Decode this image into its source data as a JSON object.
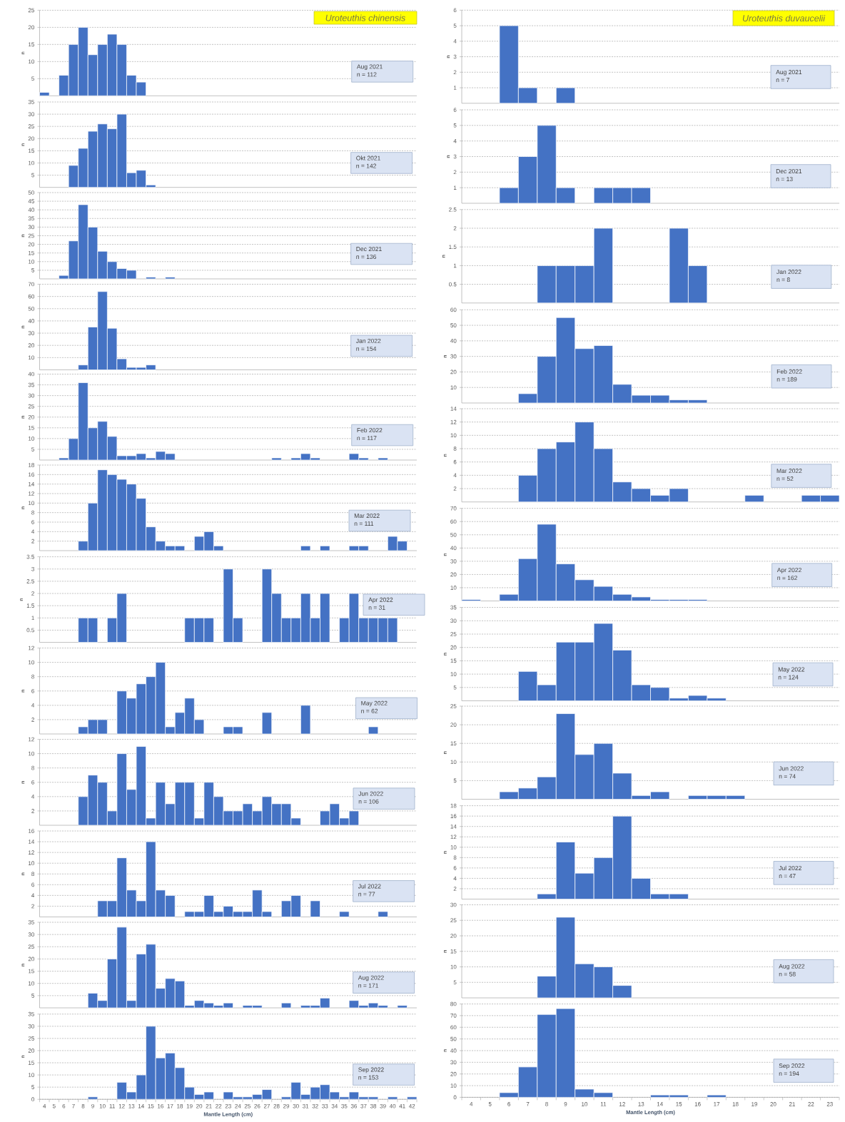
{
  "chart_data": [
    {
      "type": "bar",
      "title": "Uroteuthis chinensis",
      "ylabel": "n",
      "categories": [
        "4",
        "5",
        "6",
        "7",
        "8",
        "9",
        "10",
        "11",
        "12",
        "13",
        "14",
        "15",
        "16",
        "17",
        "18",
        "19",
        "20",
        "21",
        "22",
        "23",
        "24",
        "25",
        "26",
        "27",
        "28",
        "29",
        "30",
        "31",
        "32",
        "33",
        "34",
        "35",
        "36",
        "37",
        "38",
        "39",
        "40",
        "41",
        "42"
      ],
      "values": [
        1,
        null,
        6,
        15,
        20,
        12,
        15,
        18,
        15,
        6,
        4,
        null,
        null,
        null,
        null,
        null,
        null,
        null,
        null,
        null,
        null,
        null,
        null,
        null,
        null,
        null,
        null,
        null,
        null,
        null,
        null,
        null,
        null,
        null,
        null,
        null,
        null,
        null,
        null
      ],
      "color": "#4472c4",
      "ylim": [
        0,
        25
      ],
      "yticks": [
        5,
        10,
        15,
        20,
        25
      ],
      "grid": "y",
      "tick_labels": "y",
      "annotations": [
        "Aug 2021",
        "n = 112"
      ]
    },
    {
      "type": "bar",
      "ylabel": "n",
      "categories": [
        "4",
        "5",
        "6",
        "7",
        "8",
        "9",
        "10",
        "11",
        "12",
        "13",
        "14",
        "15",
        "16",
        "17",
        "18",
        "19",
        "20",
        "21",
        "22",
        "23",
        "24",
        "25",
        "26",
        "27",
        "28",
        "29",
        "30",
        "31",
        "32",
        "33",
        "34",
        "35",
        "36",
        "37",
        "38",
        "39",
        "40",
        "41",
        "42"
      ],
      "values": [
        null,
        null,
        null,
        9,
        16,
        23,
        26,
        24,
        30,
        6,
        7,
        1,
        null,
        null,
        null,
        null,
        null,
        null,
        null,
        null,
        null,
        null,
        null,
        null,
        null,
        null,
        null,
        null,
        null,
        null,
        null,
        null,
        null,
        null,
        null,
        null,
        null,
        null,
        null
      ],
      "color": "#4472c4",
      "ylim": [
        0,
        35
      ],
      "yticks": [
        5,
        10,
        15,
        20,
        25,
        30,
        35
      ],
      "grid": "y",
      "tick_labels": "y",
      "annotations": [
        "Okt 2021",
        "n = 142"
      ]
    },
    {
      "type": "bar",
      "ylabel": "n",
      "categories": [
        "4",
        "5",
        "6",
        "7",
        "8",
        "9",
        "10",
        "11",
        "12",
        "13",
        "14",
        "15",
        "16",
        "17",
        "18",
        "19",
        "20",
        "21",
        "22",
        "23",
        "24",
        "25",
        "26",
        "27",
        "28",
        "29",
        "30",
        "31",
        "32",
        "33",
        "34",
        "35",
        "36",
        "37",
        "38",
        "39",
        "40",
        "41",
        "42"
      ],
      "values": [
        null,
        null,
        2,
        22,
        43,
        30,
        16,
        10,
        6,
        5,
        null,
        1,
        null,
        1,
        null,
        null,
        null,
        null,
        null,
        null,
        null,
        null,
        null,
        null,
        null,
        null,
        null,
        null,
        null,
        null,
        null,
        null,
        null,
        null,
        null,
        null,
        null,
        null,
        null
      ],
      "color": "#4472c4",
      "ylim": [
        0,
        50
      ],
      "yticks": [
        5,
        10,
        15,
        20,
        25,
        30,
        35,
        40,
        45,
        50
      ],
      "grid": "y",
      "tick_labels": "y",
      "annotations": [
        "Dec 2021",
        "n = 136"
      ]
    },
    {
      "type": "bar",
      "ylabel": "n",
      "categories": [
        "4",
        "5",
        "6",
        "7",
        "8",
        "9",
        "10",
        "11",
        "12",
        "13",
        "14",
        "15",
        "16",
        "17",
        "18",
        "19",
        "20",
        "21",
        "22",
        "23",
        "24",
        "25",
        "26",
        "27",
        "28",
        "29",
        "30",
        "31",
        "32",
        "33",
        "34",
        "35",
        "36",
        "37",
        "38",
        "39",
        "40",
        "41",
        "42"
      ],
      "values": [
        null,
        null,
        null,
        null,
        4,
        35,
        64,
        34,
        9,
        2,
        2,
        4,
        null,
        null,
        null,
        null,
        null,
        null,
        null,
        null,
        null,
        null,
        null,
        null,
        null,
        null,
        null,
        null,
        null,
        null,
        null,
        null,
        null,
        null,
        null,
        null,
        null,
        null,
        null
      ],
      "color": "#4472c4",
      "ylim": [
        0,
        70
      ],
      "yticks": [
        10,
        20,
        30,
        40,
        50,
        60,
        70
      ],
      "grid": "y",
      "tick_labels": "y",
      "annotations": [
        "Jan 2022",
        "n = 154"
      ]
    },
    {
      "type": "bar",
      "ylabel": "n",
      "categories": [
        "4",
        "5",
        "6",
        "7",
        "8",
        "9",
        "10",
        "11",
        "12",
        "13",
        "14",
        "15",
        "16",
        "17",
        "18",
        "19",
        "20",
        "21",
        "22",
        "23",
        "24",
        "25",
        "26",
        "27",
        "28",
        "29",
        "30",
        "31",
        "32",
        "33",
        "34",
        "35",
        "36",
        "37",
        "38",
        "39",
        "40",
        "41",
        "42"
      ],
      "values": [
        null,
        null,
        1,
        10,
        36,
        15,
        18,
        11,
        2,
        2,
        3,
        1,
        4,
        3,
        null,
        null,
        null,
        null,
        null,
        null,
        null,
        null,
        null,
        null,
        1,
        null,
        1,
        3,
        1,
        null,
        null,
        null,
        3,
        1,
        null,
        1,
        null,
        null,
        null
      ],
      "color": "#4472c4",
      "ylim": [
        0,
        40
      ],
      "yticks": [
        5,
        10,
        15,
        20,
        25,
        30,
        35,
        40
      ],
      "grid": "y",
      "tick_labels": "y",
      "annotations": [
        "Feb 2022",
        "n = 117"
      ]
    },
    {
      "type": "bar",
      "ylabel": "n",
      "categories": [
        "4",
        "5",
        "6",
        "7",
        "8",
        "9",
        "10",
        "11",
        "12",
        "13",
        "14",
        "15",
        "16",
        "17",
        "18",
        "19",
        "20",
        "21",
        "22",
        "23",
        "24",
        "25",
        "26",
        "27",
        "28",
        "29",
        "30",
        "31",
        "32",
        "33",
        "34",
        "35",
        "36",
        "37",
        "38",
        "39",
        "40",
        "41",
        "42"
      ],
      "values": [
        null,
        null,
        null,
        null,
        2,
        10,
        17,
        16,
        15,
        14,
        11,
        5,
        2,
        1,
        1,
        null,
        3,
        4,
        1,
        null,
        null,
        null,
        null,
        null,
        null,
        null,
        null,
        1,
        null,
        1,
        null,
        null,
        1,
        1,
        null,
        null,
        3,
        2,
        null
      ],
      "color": "#4472c4",
      "ylim": [
        0,
        18
      ],
      "yticks": [
        2,
        4,
        6,
        8,
        10,
        12,
        14,
        16,
        18
      ],
      "grid": "y",
      "tick_labels": "y",
      "annotations": [
        "Mar 2022",
        "n = 111"
      ]
    },
    {
      "type": "bar",
      "ylabel": "n",
      "categories": [
        "4",
        "5",
        "6",
        "7",
        "8",
        "9",
        "10",
        "11",
        "12",
        "13",
        "14",
        "15",
        "16",
        "17",
        "18",
        "19",
        "20",
        "21",
        "22",
        "23",
        "24",
        "25",
        "26",
        "27",
        "28",
        "29",
        "30",
        "31",
        "32",
        "33",
        "34",
        "35",
        "36",
        "37",
        "38",
        "39",
        "40",
        "41",
        "42"
      ],
      "values": [
        null,
        null,
        null,
        null,
        1,
        1,
        null,
        1,
        2,
        null,
        null,
        null,
        null,
        null,
        null,
        1,
        1,
        1,
        null,
        3,
        1,
        null,
        null,
        3,
        2,
        1,
        1,
        2,
        1,
        2,
        null,
        1,
        2,
        1,
        1,
        1,
        1,
        null,
        null
      ],
      "color": "#4472c4",
      "ylim": [
        0,
        3.5
      ],
      "yticks": [
        0.5,
        1,
        1.5,
        2,
        2.5,
        3,
        3.5
      ],
      "grid": "y",
      "tick_labels": "y",
      "annotations": [
        "Apr 2022",
        "n = 31"
      ]
    },
    {
      "type": "bar",
      "ylabel": "n",
      "categories": [
        "4",
        "5",
        "6",
        "7",
        "8",
        "9",
        "10",
        "11",
        "12",
        "13",
        "14",
        "15",
        "16",
        "17",
        "18",
        "19",
        "20",
        "21",
        "22",
        "23",
        "24",
        "25",
        "26",
        "27",
        "28",
        "29",
        "30",
        "31",
        "32",
        "33",
        "34",
        "35",
        "36",
        "37",
        "38",
        "39",
        "40",
        "41",
        "42"
      ],
      "values": [
        null,
        null,
        null,
        null,
        1,
        2,
        2,
        null,
        6,
        5,
        7,
        8,
        10,
        1,
        3,
        5,
        2,
        null,
        null,
        1,
        1,
        null,
        null,
        3,
        null,
        null,
        null,
        4,
        null,
        null,
        null,
        null,
        null,
        null,
        1,
        null,
        null,
        null,
        null
      ],
      "color": "#4472c4",
      "ylim": [
        0,
        12
      ],
      "yticks": [
        2,
        4,
        6,
        8,
        10,
        12
      ],
      "grid": "y",
      "tick_labels": "y",
      "annotations": [
        "May 2022",
        "n = 62"
      ]
    },
    {
      "type": "bar",
      "ylabel": "n",
      "categories": [
        "4",
        "5",
        "6",
        "7",
        "8",
        "9",
        "10",
        "11",
        "12",
        "13",
        "14",
        "15",
        "16",
        "17",
        "18",
        "19",
        "20",
        "21",
        "22",
        "23",
        "24",
        "25",
        "26",
        "27",
        "28",
        "29",
        "30",
        "31",
        "32",
        "33",
        "34",
        "35",
        "36",
        "37",
        "38",
        "39",
        "40",
        "41",
        "42"
      ],
      "values": [
        null,
        null,
        null,
        null,
        4,
        7,
        6,
        2,
        10,
        5,
        11,
        1,
        6,
        3,
        6,
        6,
        1,
        6,
        4,
        2,
        2,
        3,
        2,
        4,
        3,
        3,
        1,
        null,
        null,
        2,
        3,
        1,
        2,
        null,
        null,
        null,
        null,
        null,
        null
      ],
      "color": "#4472c4",
      "ylim": [
        0,
        12
      ],
      "yticks": [
        2,
        4,
        6,
        8,
        10,
        12
      ],
      "grid": "y",
      "tick_labels": "y",
      "annotations": [
        "Jun 2022",
        "n = 106"
      ]
    },
    {
      "type": "bar",
      "ylabel": "n",
      "categories": [
        "4",
        "5",
        "6",
        "7",
        "8",
        "9",
        "10",
        "11",
        "12",
        "13",
        "14",
        "15",
        "16",
        "17",
        "18",
        "19",
        "20",
        "21",
        "22",
        "23",
        "24",
        "25",
        "26",
        "27",
        "28",
        "29",
        "30",
        "31",
        "32",
        "33",
        "34",
        "35",
        "36",
        "37",
        "38",
        "39",
        "40",
        "41",
        "42"
      ],
      "values": [
        null,
        null,
        null,
        null,
        null,
        null,
        3,
        3,
        11,
        5,
        3,
        14,
        5,
        4,
        null,
        1,
        1,
        4,
        1,
        2,
        1,
        1,
        5,
        1,
        null,
        3,
        4,
        null,
        3,
        null,
        null,
        1,
        null,
        null,
        null,
        1,
        null,
        null,
        null
      ],
      "color": "#4472c4",
      "ylim": [
        0,
        16
      ],
      "yticks": [
        2,
        4,
        6,
        8,
        10,
        12,
        14,
        16
      ],
      "grid": "y",
      "tick_labels": "y",
      "annotations": [
        "Jul 2022",
        "n = 77"
      ]
    },
    {
      "type": "bar",
      "ylabel": "n",
      "categories": [
        "4",
        "5",
        "6",
        "7",
        "8",
        "9",
        "10",
        "11",
        "12",
        "13",
        "14",
        "15",
        "16",
        "17",
        "18",
        "19",
        "20",
        "21",
        "22",
        "23",
        "24",
        "25",
        "26",
        "27",
        "28",
        "29",
        "30",
        "31",
        "32",
        "33",
        "34",
        "35",
        "36",
        "37",
        "38",
        "39",
        "40",
        "41",
        "42"
      ],
      "values": [
        null,
        null,
        null,
        null,
        null,
        6,
        3,
        20,
        33,
        3,
        22,
        26,
        8,
        12,
        11,
        1,
        3,
        2,
        1,
        2,
        null,
        1,
        1,
        null,
        null,
        2,
        null,
        1,
        1,
        4,
        null,
        null,
        3,
        1,
        2,
        1,
        null,
        1,
        null
      ],
      "color": "#4472c4",
      "ylim": [
        0,
        35
      ],
      "yticks": [
        5,
        10,
        15,
        20,
        25,
        30,
        35
      ],
      "grid": "y",
      "tick_labels": "y",
      "annotations": [
        "Aug 2022",
        "n = 171"
      ]
    },
    {
      "type": "bar",
      "xlabel": "Mantle Length (cm)",
      "ylabel": "n",
      "categories": [
        "4",
        "5",
        "6",
        "7",
        "8",
        "9",
        "10",
        "11",
        "12",
        "13",
        "14",
        "15",
        "16",
        "17",
        "18",
        "19",
        "20",
        "21",
        "22",
        "23",
        "24",
        "25",
        "26",
        "27",
        "28",
        "29",
        "30",
        "31",
        "32",
        "33",
        "34",
        "35",
        "36",
        "37",
        "38",
        "39",
        "40",
        "41",
        "42"
      ],
      "values": [
        null,
        null,
        null,
        null,
        null,
        1,
        null,
        null,
        7,
        3,
        10,
        30,
        17,
        19,
        13,
        5,
        2,
        3,
        null,
        3,
        1,
        1,
        2,
        4,
        null,
        1,
        7,
        2,
        5,
        6,
        3,
        1,
        3,
        1,
        1,
        null,
        1,
        null,
        1
      ],
      "color": "#4472c4",
      "ylim": [
        0,
        35
      ],
      "yticks": [
        0,
        5,
        10,
        15,
        20,
        25,
        30,
        35
      ],
      "grid": "y",
      "annotations": [
        "Sep 2022",
        "n = 153"
      ]
    },
    {
      "type": "bar",
      "title": "Uroteuthis duvaucelii",
      "ylabel": "n",
      "categories": [
        "4",
        "5",
        "6",
        "7",
        "8",
        "9",
        "10",
        "11",
        "12",
        "13",
        "14",
        "15",
        "16",
        "17",
        "18",
        "19",
        "20",
        "21",
        "22",
        "23"
      ],
      "values": [
        null,
        null,
        5,
        1,
        null,
        1,
        null,
        null,
        null,
        null,
        null,
        null,
        null,
        null,
        null,
        null,
        null,
        null,
        null,
        null
      ],
      "color": "#4472c4",
      "ylim": [
        0,
        6
      ],
      "yticks": [
        1,
        2,
        3,
        4,
        5,
        6
      ],
      "grid": "y",
      "tick_labels": "y",
      "annotations": [
        "Aug 2021",
        "n = 7"
      ]
    },
    {
      "type": "bar",
      "ylabel": "n",
      "categories": [
        "4",
        "5",
        "6",
        "7",
        "8",
        "9",
        "10",
        "11",
        "12",
        "13",
        "14",
        "15",
        "16",
        "17",
        "18",
        "19",
        "20",
        "21",
        "22",
        "23"
      ],
      "values": [
        null,
        null,
        1,
        3,
        5,
        1,
        null,
        1,
        1,
        1,
        null,
        null,
        null,
        null,
        null,
        null,
        null,
        null,
        null,
        null
      ],
      "color": "#4472c4",
      "ylim": [
        0,
        6
      ],
      "yticks": [
        1,
        2,
        3,
        4,
        5,
        6
      ],
      "grid": "y",
      "tick_labels": "y",
      "annotations": [
        "Dec 2021",
        "n = 13"
      ]
    },
    {
      "type": "bar",
      "ylabel": "n",
      "categories": [
        "4",
        "5",
        "6",
        "7",
        "8",
        "9",
        "10",
        "11",
        "12",
        "13",
        "14",
        "15",
        "16",
        "17",
        "18",
        "19",
        "20",
        "21",
        "22",
        "23"
      ],
      "values": [
        null,
        null,
        null,
        null,
        1,
        1,
        1,
        2,
        null,
        null,
        null,
        2,
        1,
        null,
        null,
        null,
        null,
        null,
        null,
        null
      ],
      "color": "#4472c4",
      "ylim": [
        0,
        2.5
      ],
      "yticks": [
        0.5,
        1,
        1.5,
        2,
        2.5
      ],
      "grid": "y",
      "tick_labels": "y",
      "annotations": [
        "Jan 2022",
        "n = 8"
      ]
    },
    {
      "type": "bar",
      "ylabel": "n",
      "categories": [
        "4",
        "5",
        "6",
        "7",
        "8",
        "9",
        "10",
        "11",
        "12",
        "13",
        "14",
        "15",
        "16",
        "17",
        "18",
        "19",
        "20",
        "21",
        "22",
        "23"
      ],
      "values": [
        null,
        null,
        null,
        6,
        30,
        55,
        35,
        37,
        12,
        5,
        5,
        2,
        2,
        null,
        null,
        null,
        null,
        null,
        null,
        null
      ],
      "color": "#4472c4",
      "ylim": [
        0,
        60
      ],
      "yticks": [
        10,
        20,
        30,
        40,
        50,
        60
      ],
      "grid": "y",
      "tick_labels": "y",
      "annotations": [
        "Feb 2022",
        "n = 189"
      ]
    },
    {
      "type": "bar",
      "ylabel": "n",
      "categories": [
        "4",
        "5",
        "6",
        "7",
        "8",
        "9",
        "10",
        "11",
        "12",
        "13",
        "14",
        "15",
        "16",
        "17",
        "18",
        "19",
        "20",
        "21",
        "22",
        "23"
      ],
      "values": [
        null,
        null,
        null,
        4,
        8,
        9,
        12,
        8,
        3,
        2,
        1,
        2,
        null,
        null,
        null,
        1,
        null,
        null,
        1,
        1
      ],
      "color": "#4472c4",
      "ylim": [
        0,
        14
      ],
      "yticks": [
        2,
        4,
        6,
        8,
        10,
        12,
        14
      ],
      "grid": "y",
      "tick_labels": "y",
      "annotations": [
        "Mar 2022",
        "n = 52"
      ]
    },
    {
      "type": "bar",
      "ylabel": "n",
      "categories": [
        "4",
        "5",
        "6",
        "7",
        "8",
        "9",
        "10",
        "11",
        "12",
        "13",
        "14",
        "15",
        "16",
        "17",
        "18",
        "19",
        "20",
        "21",
        "22",
        "23"
      ],
      "values": [
        1,
        null,
        5,
        32,
        58,
        28,
        16,
        11,
        5,
        3,
        1,
        1,
        1,
        null,
        null,
        null,
        null,
        null,
        null,
        null
      ],
      "color": "#4472c4",
      "ylim": [
        0,
        70
      ],
      "yticks": [
        10,
        20,
        30,
        40,
        50,
        60,
        70
      ],
      "grid": "y",
      "tick_labels": "y",
      "annotations": [
        "Apr 2022",
        "n = 162"
      ]
    },
    {
      "type": "bar",
      "ylabel": "n",
      "categories": [
        "4",
        "5",
        "6",
        "7",
        "8",
        "9",
        "10",
        "11",
        "12",
        "13",
        "14",
        "15",
        "16",
        "17",
        "18",
        "19",
        "20",
        "21",
        "22",
        "23"
      ],
      "values": [
        null,
        null,
        null,
        11,
        6,
        22,
        22,
        29,
        19,
        6,
        5,
        1,
        2,
        1,
        null,
        null,
        null,
        null,
        null,
        null
      ],
      "color": "#4472c4",
      "ylim": [
        0,
        35
      ],
      "yticks": [
        5,
        10,
        15,
        20,
        25,
        30,
        35
      ],
      "grid": "y",
      "tick_labels": "y",
      "annotations": [
        "May 2022",
        "n = 124"
      ]
    },
    {
      "type": "bar",
      "ylabel": "n",
      "categories": [
        "4",
        "5",
        "6",
        "7",
        "8",
        "9",
        "10",
        "11",
        "12",
        "13",
        "14",
        "15",
        "16",
        "17",
        "18",
        "19",
        "20",
        "21",
        "22",
        "23"
      ],
      "values": [
        null,
        null,
        2,
        3,
        6,
        23,
        12,
        15,
        7,
        1,
        2,
        null,
        1,
        1,
        1,
        null,
        null,
        null,
        null,
        null
      ],
      "color": "#4472c4",
      "ylim": [
        0,
        25
      ],
      "yticks": [
        5,
        10,
        15,
        20,
        25
      ],
      "grid": "y",
      "tick_labels": "y",
      "annotations": [
        "Jun 2022",
        "n = 74"
      ]
    },
    {
      "type": "bar",
      "ylabel": "n",
      "categories": [
        "4",
        "5",
        "6",
        "7",
        "8",
        "9",
        "10",
        "11",
        "12",
        "13",
        "14",
        "15",
        "16",
        "17",
        "18",
        "19",
        "20",
        "21",
        "22",
        "23"
      ],
      "values": [
        null,
        null,
        null,
        null,
        1,
        11,
        5,
        8,
        16,
        4,
        1,
        1,
        null,
        null,
        null,
        null,
        null,
        null,
        null,
        null
      ],
      "color": "#4472c4",
      "ylim": [
        0,
        18
      ],
      "yticks": [
        2,
        4,
        6,
        8,
        10,
        12,
        14,
        16,
        18
      ],
      "grid": "y",
      "tick_labels": "y",
      "annotations": [
        "Jul 2022",
        "n = 47"
      ]
    },
    {
      "type": "bar",
      "ylabel": "n",
      "categories": [
        "4",
        "5",
        "6",
        "7",
        "8",
        "9",
        "10",
        "11",
        "12",
        "13",
        "14",
        "15",
        "16",
        "17",
        "18",
        "19",
        "20",
        "21",
        "22",
        "23"
      ],
      "values": [
        null,
        null,
        null,
        null,
        7,
        26,
        11,
        10,
        4,
        null,
        null,
        null,
        null,
        null,
        null,
        null,
        null,
        null,
        null,
        null
      ],
      "color": "#4472c4",
      "ylim": [
        0,
        30
      ],
      "yticks": [
        5,
        10,
        15,
        20,
        25,
        30
      ],
      "grid": "y",
      "tick_labels": "y",
      "annotations": [
        "Aug 2022",
        "n = 58"
      ]
    },
    {
      "type": "bar",
      "xlabel": "Mantle Length (cm)",
      "ylabel": "n",
      "categories": [
        "4",
        "5",
        "6",
        "7",
        "8",
        "9",
        "10",
        "11",
        "12",
        "13",
        "14",
        "15",
        "16",
        "17",
        "18",
        "19",
        "20",
        "21",
        "22",
        "23"
      ],
      "values": [
        null,
        null,
        4,
        26,
        71,
        76,
        7,
        4,
        null,
        null,
        2,
        2,
        null,
        2,
        null,
        null,
        null,
        null,
        null,
        null
      ],
      "color": "#4472c4",
      "ylim": [
        0,
        80
      ],
      "yticks": [
        0,
        10,
        20,
        30,
        40,
        50,
        60,
        70,
        80
      ],
      "grid": "y",
      "annotations": [
        "Sep 2022",
        "n = 194"
      ]
    }
  ]
}
